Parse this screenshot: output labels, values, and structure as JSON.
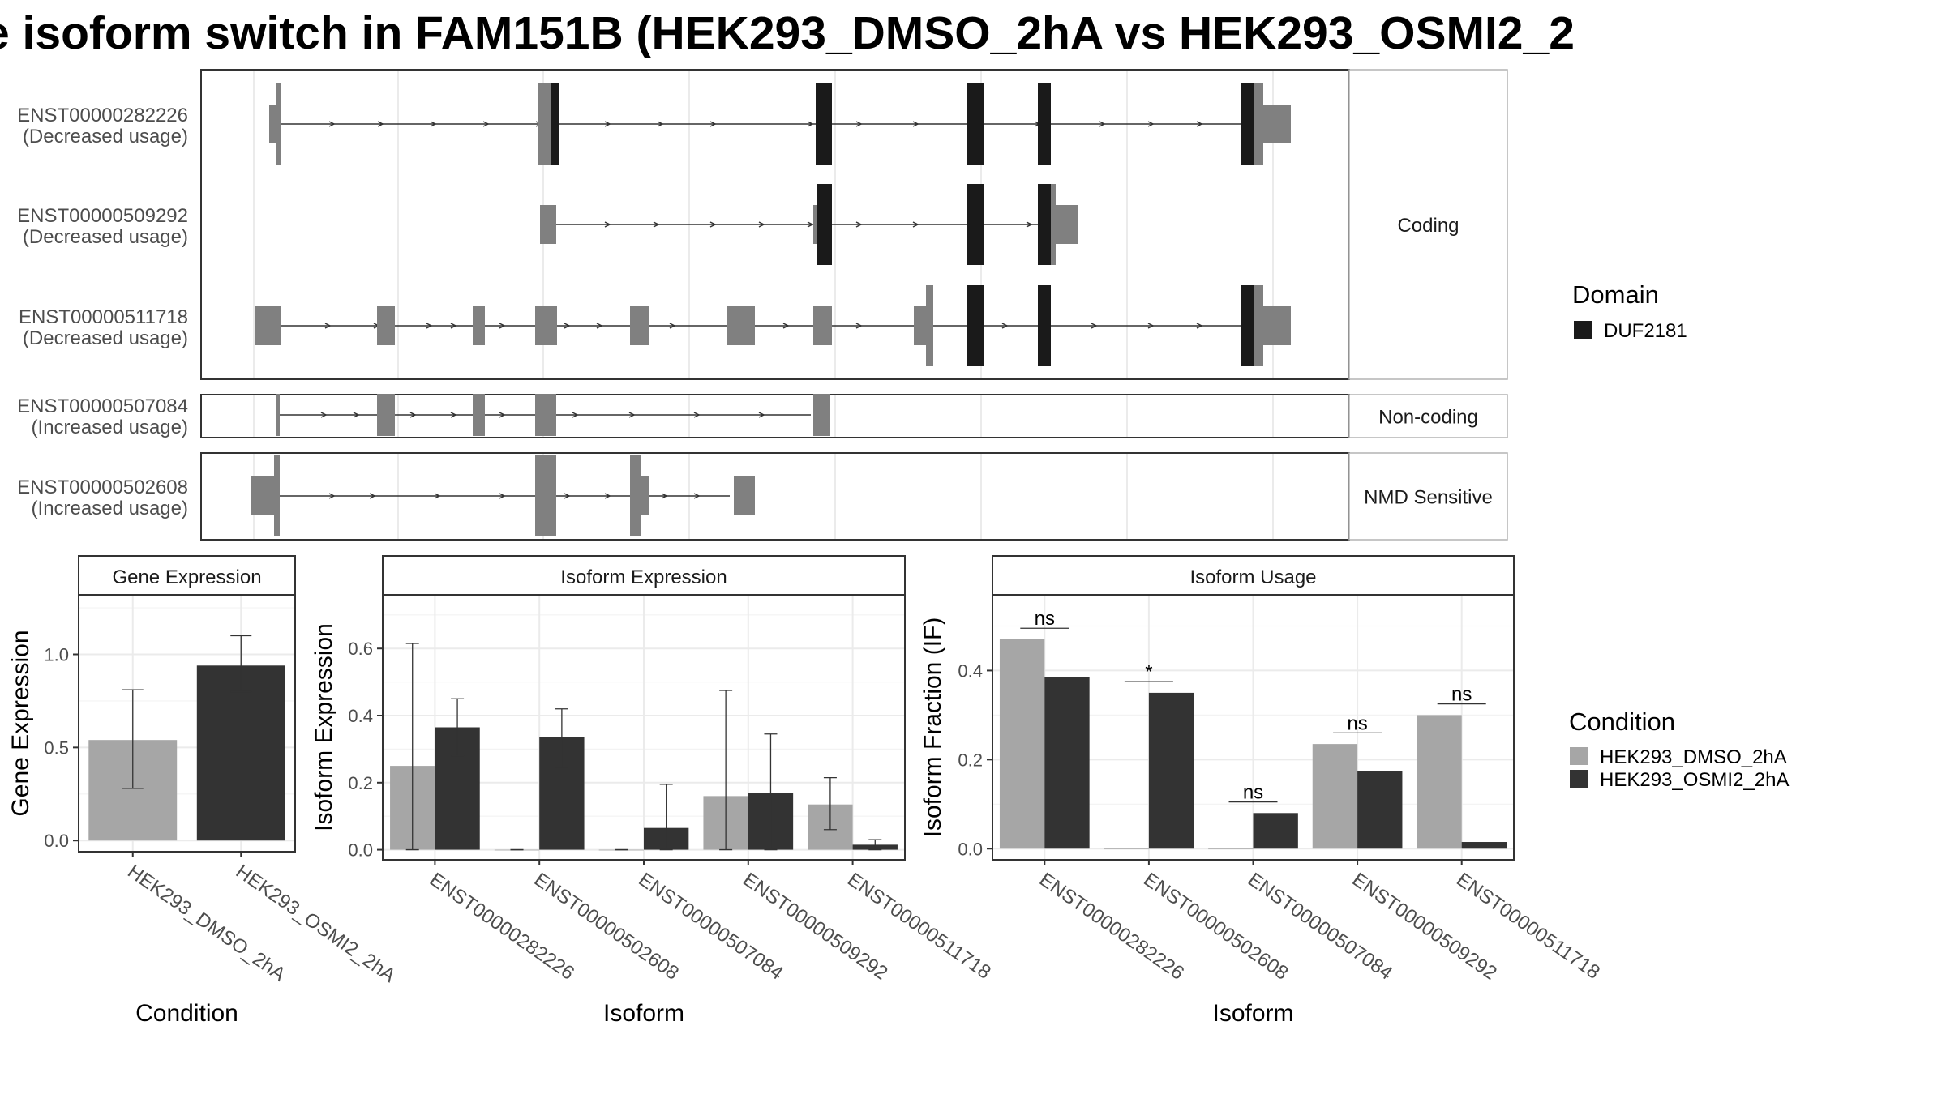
{
  "title": "e isoform switch in FAM151B (HEK293_DMSO_2hA vs HEK293_OSMI2_2",
  "structure": {
    "facets": [
      "Coding",
      "Non-coding",
      "NMD Sensitive"
    ],
    "rows": [
      {
        "id": "ENST00000282226",
        "usage": "(Decreased usage)",
        "facet": 0
      },
      {
        "id": "ENST00000509292",
        "usage": "(Decreased usage)",
        "facet": 0
      },
      {
        "id": "ENST00000511718",
        "usage": "(Decreased usage)",
        "facet": 0
      },
      {
        "id": "ENST00000507084",
        "usage": "(Increased usage)",
        "facet": 1
      },
      {
        "id": "ENST00000502608",
        "usage": "(Increased usage)",
        "facet": 2
      }
    ]
  },
  "legend": {
    "domain_title": "Domain",
    "domain_items": [
      {
        "label": "DUF2181",
        "color": "#1a1a1a"
      }
    ],
    "condition_title": "Condition",
    "condition_items": [
      {
        "label": "HEK293_DMSO_2hA",
        "color": "#a6a6a6"
      },
      {
        "label": "HEK293_OSMI2_2hA",
        "color": "#333333"
      }
    ]
  },
  "colors": {
    "light": "#a6a6a6",
    "dark": "#333333",
    "exon": "#808080",
    "domain": "#1a1a1a",
    "panel_border": "#333333",
    "strip_border": "#333333",
    "grid": "#ebebeb"
  },
  "chart_data": [
    {
      "type": "bar",
      "title": "Gene Expression",
      "xlabel": "Condition",
      "ylabel": "Gene Expression",
      "categories": [
        "HEK293_DMSO_2hA",
        "HEK293_OSMI2_2hA"
      ],
      "values": [
        0.54,
        0.94
      ],
      "error_low": [
        0.28,
        0.8
      ],
      "error_high": [
        0.81,
        1.1
      ],
      "ylim": [
        -0.06,
        1.32
      ],
      "yticks": [
        0.0,
        0.5,
        1.0
      ],
      "ytick_labels": [
        "0.0",
        "0.5",
        "1.0"
      ],
      "grid": true
    },
    {
      "type": "bar",
      "title": "Isoform Expression",
      "xlabel": "Isoform",
      "ylabel": "Isoform Expression",
      "categories": [
        "ENST00000282226",
        "ENST00000502608",
        "ENST00000507084",
        "ENST00000509292",
        "ENST00000511718"
      ],
      "ylim": [
        -0.03,
        0.76
      ],
      "yticks": [
        0.0,
        0.2,
        0.4,
        0.6
      ],
      "ytick_labels": [
        "0.0",
        "0.2",
        "0.4",
        "0.6"
      ],
      "grid": true,
      "series": [
        {
          "name": "HEK293_DMSO_2hA",
          "values": [
            0.25,
            0.0,
            0.0,
            0.16,
            0.135
          ],
          "error_low": [
            0.0,
            0.0,
            0.0,
            0.0,
            0.06
          ],
          "error_high": [
            0.615,
            0.0,
            0.0,
            0.475,
            0.215
          ]
        },
        {
          "name": "HEK293_OSMI2_2hA",
          "values": [
            0.365,
            0.335,
            0.065,
            0.17,
            0.015
          ],
          "error_low": [
            0.28,
            0.245,
            0.0,
            0.0,
            0.0
          ],
          "error_high": [
            0.45,
            0.42,
            0.195,
            0.345,
            0.03
          ]
        }
      ]
    },
    {
      "type": "bar",
      "title": "Isoform Usage",
      "xlabel": "Isoform",
      "ylabel": "Isoform Fraction (IF)",
      "categories": [
        "ENST00000282226",
        "ENST00000502608",
        "ENST00000507084",
        "ENST00000509292",
        "ENST00000511718"
      ],
      "ylim": [
        -0.025,
        0.57
      ],
      "yticks": [
        0.0,
        0.2,
        0.4
      ],
      "ytick_labels": [
        "0.0",
        "0.2",
        "0.4"
      ],
      "grid": true,
      "significance": [
        "ns",
        "*",
        "ns",
        "ns",
        "ns"
      ],
      "significance_y": [
        0.495,
        0.375,
        0.105,
        0.26,
        0.325
      ],
      "series": [
        {
          "name": "HEK293_DMSO_2hA",
          "values": [
            0.47,
            0.0,
            0.0,
            0.235,
            0.3
          ]
        },
        {
          "name": "HEK293_OSMI2_2hA",
          "values": [
            0.385,
            0.35,
            0.08,
            0.175,
            0.015
          ]
        }
      ]
    }
  ]
}
